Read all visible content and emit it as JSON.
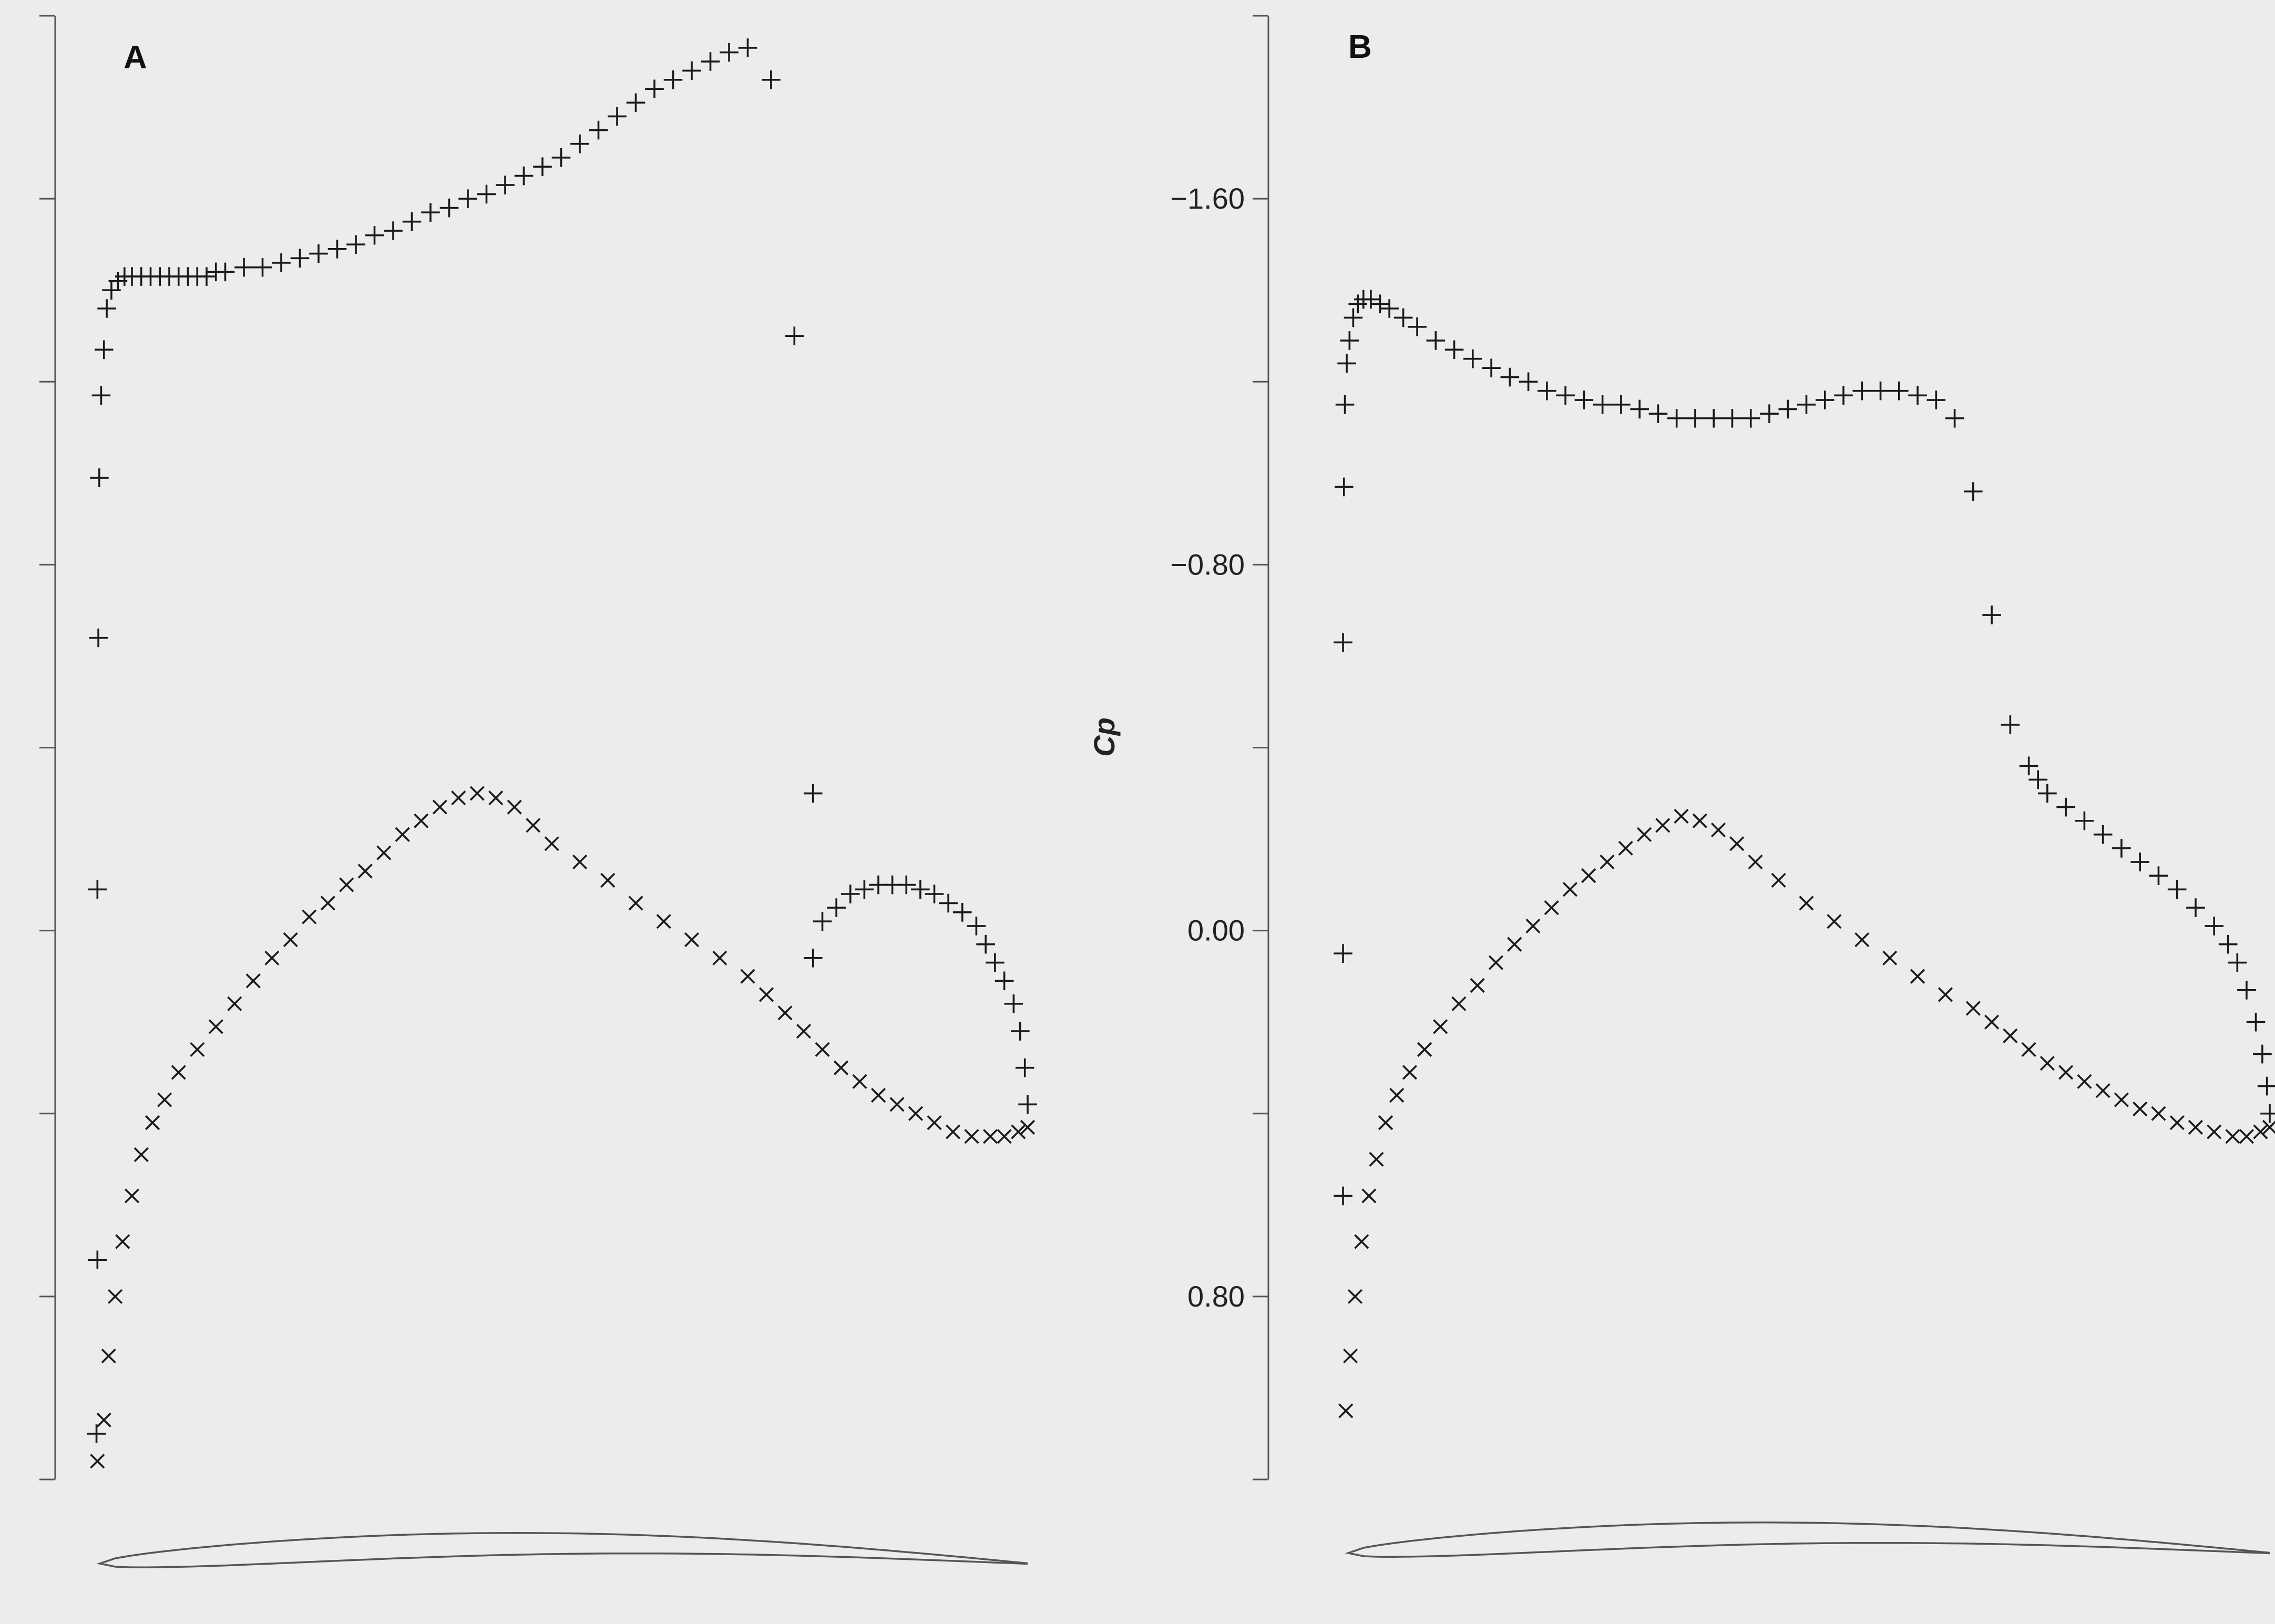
{
  "chart_data": [
    {
      "type": "scatter",
      "panel_label": "A",
      "ylabel": "",
      "y_inverted": true,
      "ylim": [
        1.2,
        -2.0
      ],
      "xlim": [
        0,
        1
      ],
      "yticks": [
        -2.0,
        -1.6,
        -1.2,
        -0.8,
        -0.4,
        0.0,
        0.4,
        0.8,
        1.2
      ],
      "ytick_labels": [
        "",
        "",
        "",
        "",
        "",
        "",
        "",
        "",
        ""
      ],
      "grid": false,
      "airfoil_sketch": true,
      "series": [
        {
          "marker": "+",
          "x": [
            0.002,
            0.003,
            0.003,
            0.004,
            0.005,
            0.007,
            0.01,
            0.013,
            0.018,
            0.025,
            0.032,
            0.04,
            0.05,
            0.06,
            0.07,
            0.08,
            0.09,
            0.1,
            0.11,
            0.12,
            0.13,
            0.14,
            0.16,
            0.18,
            0.2,
            0.22,
            0.24,
            0.26,
            0.28,
            0.3,
            0.32,
            0.34,
            0.36,
            0.38,
            0.4,
            0.42,
            0.44,
            0.46,
            0.48,
            0.5,
            0.52,
            0.54,
            0.56,
            0.58,
            0.6,
            0.62,
            0.64,
            0.66,
            0.68,
            0.7,
            0.725,
            0.75,
            0.77
          ],
          "y": [
            1.1,
            0.72,
            -0.09,
            -0.64,
            -0.99,
            -1.17,
            -1.27,
            -1.36,
            -1.4,
            -1.42,
            -1.43,
            -1.43,
            -1.43,
            -1.43,
            -1.43,
            -1.43,
            -1.43,
            -1.43,
            -1.43,
            -1.43,
            -1.44,
            -1.44,
            -1.45,
            -1.45,
            -1.46,
            -1.47,
            -1.48,
            -1.49,
            -1.5,
            -1.52,
            -1.53,
            -1.55,
            -1.57,
            -1.58,
            -1.6,
            -1.61,
            -1.63,
            -1.65,
            -1.67,
            -1.69,
            -1.72,
            -1.75,
            -1.78,
            -1.81,
            -1.84,
            -1.86,
            -1.88,
            -1.9,
            -1.92,
            -1.93,
            -1.86,
            -1.3,
            -0.3
          ]
        },
        {
          "marker": "+",
          "x": [
            0.77,
            0.78,
            0.795,
            0.81,
            0.825,
            0.84,
            0.855,
            0.87,
            0.885,
            0.9,
            0.915,
            0.93,
            0.945,
            0.955,
            0.965,
            0.975,
            0.985,
            0.992,
            0.997,
            1.0
          ],
          "y": [
            0.06,
            -0.02,
            -0.05,
            -0.08,
            -0.09,
            -0.1,
            -0.1,
            -0.1,
            -0.09,
            -0.08,
            -0.06,
            -0.04,
            -0.01,
            0.03,
            0.07,
            0.11,
            0.16,
            0.22,
            0.3,
            0.38
          ]
        },
        {
          "marker": "x",
          "x": [
            0.003,
            0.01,
            0.015,
            0.022,
            0.03,
            0.04,
            0.05,
            0.062,
            0.075,
            0.09,
            0.11,
            0.13,
            0.15,
            0.17,
            0.19,
            0.21,
            0.23,
            0.25,
            0.27,
            0.29,
            0.31,
            0.33,
            0.35,
            0.37,
            0.39,
            0.41,
            0.43,
            0.45,
            0.47,
            0.49,
            0.52,
            0.55,
            0.58,
            0.61,
            0.64,
            0.67,
            0.7,
            0.72,
            0.74,
            0.76,
            0.78,
            0.8,
            0.82,
            0.84,
            0.86,
            0.88,
            0.9,
            0.92,
            0.94,
            0.96,
            0.975,
            0.99,
            1.0
          ],
          "y": [
            1.16,
            1.07,
            0.93,
            0.8,
            0.68,
            0.58,
            0.49,
            0.42,
            0.37,
            0.31,
            0.26,
            0.21,
            0.16,
            0.11,
            0.06,
            0.02,
            -0.03,
            -0.06,
            -0.1,
            -0.13,
            -0.17,
            -0.21,
            -0.24,
            -0.27,
            -0.29,
            -0.3,
            -0.29,
            -0.27,
            -0.23,
            -0.19,
            -0.15,
            -0.11,
            -0.06,
            -0.02,
            0.02,
            0.06,
            0.1,
            0.14,
            0.18,
            0.22,
            0.26,
            0.3,
            0.33,
            0.36,
            0.38,
            0.4,
            0.42,
            0.44,
            0.45,
            0.45,
            0.45,
            0.44,
            0.43
          ]
        }
      ]
    },
    {
      "type": "scatter",
      "panel_label": "B",
      "ylabel": "Cp",
      "y_inverted": true,
      "ylim": [
        1.2,
        -2.0
      ],
      "xlim": [
        0,
        1
      ],
      "yticks": [
        -2.0,
        -1.6,
        -1.2,
        -0.8,
        -0.4,
        0.0,
        0.4,
        0.8,
        1.2
      ],
      "ytick_labels": [
        "",
        "−1.60",
        "",
        "−0.80",
        "",
        "0.00",
        "",
        "0.80",
        ""
      ],
      "grid": false,
      "airfoil_sketch": true,
      "series": [
        {
          "marker": "+",
          "x": [
            0.0,
            0.0,
            0.0,
            0.001,
            0.002,
            0.004,
            0.007,
            0.011,
            0.016,
            0.022,
            0.03,
            0.04,
            0.05,
            0.065,
            0.08,
            0.1,
            0.12,
            0.14,
            0.16,
            0.18,
            0.2,
            0.22,
            0.24,
            0.26,
            0.28,
            0.3,
            0.32,
            0.34,
            0.36,
            0.38,
            0.4,
            0.42,
            0.44,
            0.46,
            0.48,
            0.5,
            0.52,
            0.54,
            0.56,
            0.58,
            0.6,
            0.62,
            0.64,
            0.66,
            0.68
          ],
          "y": [
            0.58,
            0.05,
            -0.63,
            -0.97,
            -1.15,
            -1.24,
            -1.29,
            -1.34,
            -1.37,
            -1.38,
            -1.38,
            -1.37,
            -1.36,
            -1.34,
            -1.32,
            -1.29,
            -1.27,
            -1.25,
            -1.23,
            -1.21,
            -1.2,
            -1.18,
            -1.17,
            -1.16,
            -1.15,
            -1.15,
            -1.14,
            -1.13,
            -1.12,
            -1.12,
            -1.12,
            -1.12,
            -1.12,
            -1.13,
            -1.14,
            -1.15,
            -1.16,
            -1.17,
            -1.18,
            -1.18,
            -1.18,
            -1.17,
            -1.16,
            -1.12,
            -0.96
          ]
        },
        {
          "marker": "+",
          "x": [
            0.7,
            0.72,
            0.74,
            0.75,
            0.76,
            0.78,
            0.8,
            0.82,
            0.84,
            0.86,
            0.88,
            0.9,
            0.92,
            0.94,
            0.955,
            0.965,
            0.975,
            0.985,
            0.992,
            0.997,
            1.0
          ],
          "y": [
            -0.69,
            -0.45,
            -0.36,
            -0.33,
            -0.3,
            -0.27,
            -0.24,
            -0.21,
            -0.18,
            -0.15,
            -0.12,
            -0.09,
            -0.05,
            -0.01,
            0.03,
            0.07,
            0.13,
            0.2,
            0.27,
            0.34,
            0.4
          ]
        },
        {
          "marker": "x",
          "x": [
            0.003,
            0.008,
            0.013,
            0.02,
            0.028,
            0.036,
            0.046,
            0.058,
            0.072,
            0.088,
            0.105,
            0.125,
            0.145,
            0.165,
            0.185,
            0.205,
            0.225,
            0.245,
            0.265,
            0.285,
            0.305,
            0.325,
            0.345,
            0.365,
            0.385,
            0.405,
            0.425,
            0.445,
            0.47,
            0.5,
            0.53,
            0.56,
            0.59,
            0.62,
            0.65,
            0.68,
            0.7,
            0.72,
            0.74,
            0.76,
            0.78,
            0.8,
            0.82,
            0.84,
            0.86,
            0.88,
            0.9,
            0.92,
            0.94,
            0.96,
            0.975,
            0.99,
            1.0
          ],
          "y": [
            1.05,
            0.93,
            0.8,
            0.68,
            0.58,
            0.5,
            0.42,
            0.36,
            0.31,
            0.26,
            0.21,
            0.16,
            0.12,
            0.07,
            0.03,
            -0.01,
            -0.05,
            -0.09,
            -0.12,
            -0.15,
            -0.18,
            -0.21,
            -0.23,
            -0.25,
            -0.24,
            -0.22,
            -0.19,
            -0.15,
            -0.11,
            -0.06,
            -0.02,
            0.02,
            0.06,
            0.1,
            0.14,
            0.17,
            0.2,
            0.23,
            0.26,
            0.29,
            0.31,
            0.33,
            0.35,
            0.37,
            0.39,
            0.4,
            0.42,
            0.43,
            0.44,
            0.45,
            0.45,
            0.44,
            0.43
          ]
        }
      ]
    }
  ]
}
